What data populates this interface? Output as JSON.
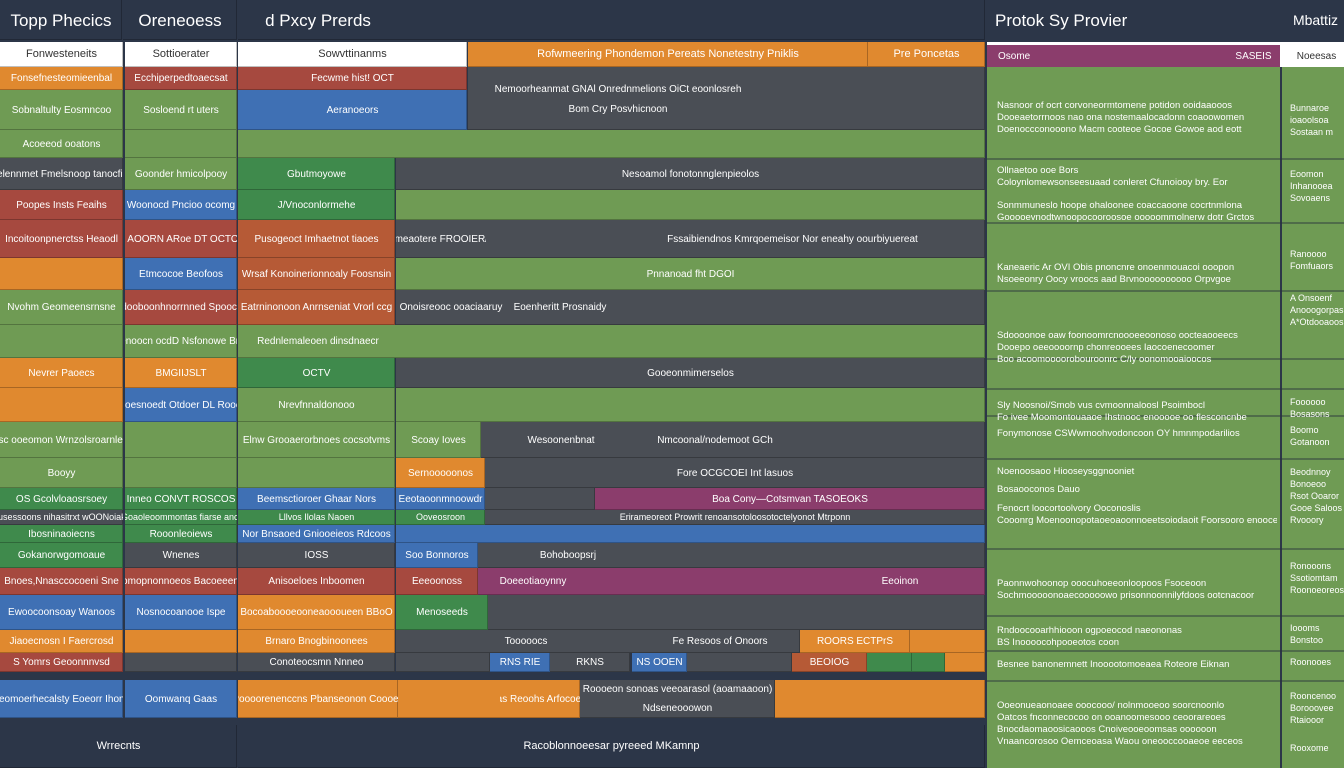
{
  "grid_rows": [
    [
      "Topp Phecics",
      "Oreneoess",
      "d Pxcy Prerds"
    ],
    [
      "Fonwesteneits",
      "Sottioerater",
      "Sowvttinanms",
      "Rofwmeering Phondemon Pereats Nonetestny Pniklis",
      "Pre Poncetas"
    ],
    [
      "Fonsefnesteomieenbal",
      "Ecchiperpedtoaecsat",
      "Fecwme hist! OCT",
      "Nemoorheanmat GNAl Onrednmelions OiCt eoonlosreh",
      "Bom Cry Posvhicnoon"
    ],
    [
      "Sobnaltulty Eosmncoo",
      "Sosloend rt uters",
      "Aeranoeors"
    ],
    [
      "Acoeeod ooatons"
    ],
    [
      "Nnlelennmet Fmelsnoop tanocfilbes",
      "Goonder hmicolpooy",
      "Gbutmoyowe",
      "Nesoamol fonotonnglenpieolos"
    ],
    [
      "Poopes Insts Feaihs",
      "Woonocd Pncioo ocomg",
      "J/Vnoconlormehe"
    ],
    [
      "Incoitoonpnerctss Heaodl",
      "Acecoeds AOORN ARoe DT OCTORS Frsoh",
      "Pusogeoct Imhaetnot tiaoes",
      "Octnrol meaotere FROOIER/VRECS",
      "Fssaibiendnos Kmrqoemeisor Nor eneahy oourbiyuereat"
    ],
    [
      "Etmcocoe Beofoos",
      "Wrsaf Konoinerionnoaly Foosnsin",
      "Pnnanoad fht DGOI"
    ],
    [
      "Nvohm Geomeensrnsne",
      "Ardooboonhnorrnned Spoocary",
      "Eatrninonoon Anrnseniat Vrorl ccg",
      "Onoisreooc ooaciaaruy",
      "Eoenheritt Prosnaidy"
    ],
    [
      "Asenoocn ocdD Nsfonowe Broor",
      "Rednlemaleoen dinsdnaecr"
    ],
    [
      "Nevrer Paoecs",
      "BMGIIJSLT",
      "OCTV",
      "Gooeonmimerselos"
    ],
    [
      "Nooesnoedt Otdoer DL Rooery",
      "Nrevfnnaldonooo"
    ],
    [
      "Asc ooeomon Wrnzolsroarnlem",
      "Elnw Grooaerorbnoes cocsotvms",
      "Scoay Ioves",
      "Wesoonenbnat",
      "Nmcoonal/nodemoot GCh"
    ],
    [
      "Booyy",
      "Sernooooonos",
      "Fore OCGCOEI Int lasuos"
    ],
    [
      "OS Gcolvloaosrsoey",
      "Inneo CONVT ROSCOS",
      "Beemsctioroer Ghaar Nors",
      "Eeotaoonmnoowdr",
      "Boa Cony—Cotsmvan TASOEOKS"
    ],
    [
      "Tusessoons nihasitrxt wOONoiaks",
      "Goaoleoommontas fiarse anc.",
      "Lllvos Ilolas Naoen",
      "Ooveosroon",
      "Erirameoreot Prowrit renoansotoloosotoctelyonot Mtrponn"
    ],
    [
      "Ibosninaoiecns",
      "Rooonleoiews",
      "Nor Bnsaoed Gniooeieos Rdcoos"
    ],
    [
      "Gokanorwgomoaue",
      "Wnenes",
      "IOSS",
      "Soo Bonnoros",
      "Bohoboopsrj"
    ],
    [
      "Bnoes,Nnasccocoeni Sne",
      "Sooioomopnonnoeos Bacoeeenoafins",
      "Anisoeloes Inboomen",
      "Eeeoonoss",
      "Doeeotiaoynny",
      "Eeoinon"
    ],
    [
      "Ewoocoonsoay Wanoos",
      "Nosnocoanooe Ispe",
      "Bocoaboooeooneaoooueen BBoO",
      "Menoseeds"
    ],
    [
      "Jiaoecnosn I Faercrosd",
      "Brnaro Bnogbinoonees",
      "Tooooocs",
      "Fe Resoos of Onoors",
      "ROORS ECTPrS"
    ],
    [
      "S Yomrs Geoonnnvsd",
      "Conoteocsmn Nnneo",
      "RNS RIE",
      "RKNS",
      "NS OOEN",
      "BEOIOG"
    ],
    [
      "Eieomoerhecalsty Eoeorr Ihonrs",
      "Oomwanq Gaas",
      "Poooorenenccns Pbanseonon Coooes",
      "Nraas Reoohs Arfocoeioos",
      "Roooeon sonoas veeoarasol (aoamaaoon)",
      "Ndseneooowon"
    ],
    [
      "Wrrecnts",
      "Racoblonnoeesar pyreeed MKamnp"
    ]
  ],
  "side_header": [
    "Protok Sy Provier",
    "Mbattiz",
    "Osome",
    "SASEIS",
    "Noeesas"
  ],
  "side_notes": [
    [
      "Nasnoor of ocrt corvoneormtomene potidon ooidaaooos",
      "Dooeaetorrnoos nao ona nostemaalocadonn coaoowomen",
      "Doenoccconooono Macm cooteoe Gocoe Gowoe aod eott"
    ],
    [
      "Ollnaetoo ooe Bors",
      "Coloynlomewsonseesuaad conleret Cfunoiooy bry. Eor"
    ],
    [
      "Sonmmuneslo hoope ohaloonee coaccaoone cocrtnmlona",
      "Gooooevnodtwnoopocooroosoe ooooommolnerw dotr Grctos"
    ],
    [
      "Kaneaeric Ar OVI Obis pnoncnre onoenmouacoi ooopon",
      "Nsoeeonry Oocy vroocs aad Brvnoooooooooo Orpvgoe"
    ],
    [
      "Sdoooonoe oaw foonoomrcnoooeeoonoso oocteaooeecs",
      "Dooepo oeeoooornp chonreooees Iaocoenecoomer",
      "Boo acoomoooorobouroonrc C/ly oonomooaioocos"
    ],
    [
      "Sly Noosnoi/Smob vus cvmoonnaloosl Psoimbocl",
      "Fo ivee Moomontouaaoe Ihstnooc enooooe oo flesconcnbe"
    ],
    [
      "Fonymonose CSWwmoohvodoncoon OY hmnmpodarilios"
    ],
    [
      "Noenoosaoo Hiooseysggnooniet"
    ],
    [
      "Bosaooconos Dauo"
    ],
    [
      "Fenocrt loocortoolvory Ooconoslis",
      "Cooonrg Moenoonopotaoeoaoonnoeetsoiodaoit Foorsooro enooceorcs"
    ],
    [
      "Paonnwohoonop ooocuhoeeonloopoos Fsoceoon",
      "Sochmooooonoaecooooowo prisonnoonnilyfdoos ootcnacoor"
    ],
    [
      "Rndoocooarhhiooon ogpoeocod naeononas",
      "BS Inoooocohpooeotos coon"
    ],
    [
      "Besnee banonemnett Inooootomoeaea Roteore Eiknan"
    ],
    [
      "Ooeonueaonoaee ooocooo/ nolnmooeoo soorcnoonlo",
      "Oatcos fnconnecocoo on ooanoomesooo ceoorareoes",
      "Bnocdaomaoosicaooos Cnoiveooeoomsas oooooon",
      "Vnaancorosoo Oemceoasa Waou oneooccooaeoe eeceos"
    ]
  ],
  "side_column": [
    [
      "Bunnaroe",
      "ioaoolsoa",
      "Sostaan m"
    ],
    [
      "Eoomon",
      "Inhanooea",
      "Sovoaens"
    ],
    [
      "Ranoooo",
      "Fomfuaors"
    ],
    [
      "A Onsoenf",
      "Anooogorpas",
      "A*Otdooaoos"
    ],
    [
      "Foooooo",
      "Bosasons"
    ],
    [
      "Boomo",
      "Gotanoon"
    ],
    [
      "Beodnnoy",
      "Bonoeoo",
      "Rsot Ooaror",
      "Gooe Saloos",
      "Rvooory"
    ],
    [
      "Ronooons",
      "Ssotiomtam",
      "Roonoeoreos"
    ],
    [
      "Ioooms",
      "Bonstoo"
    ],
    [
      "Roonooes"
    ],
    [
      "Rooncenoo",
      "Borooovee",
      "Rtaiooor"
    ],
    [
      "Rooxome"
    ]
  ]
}
